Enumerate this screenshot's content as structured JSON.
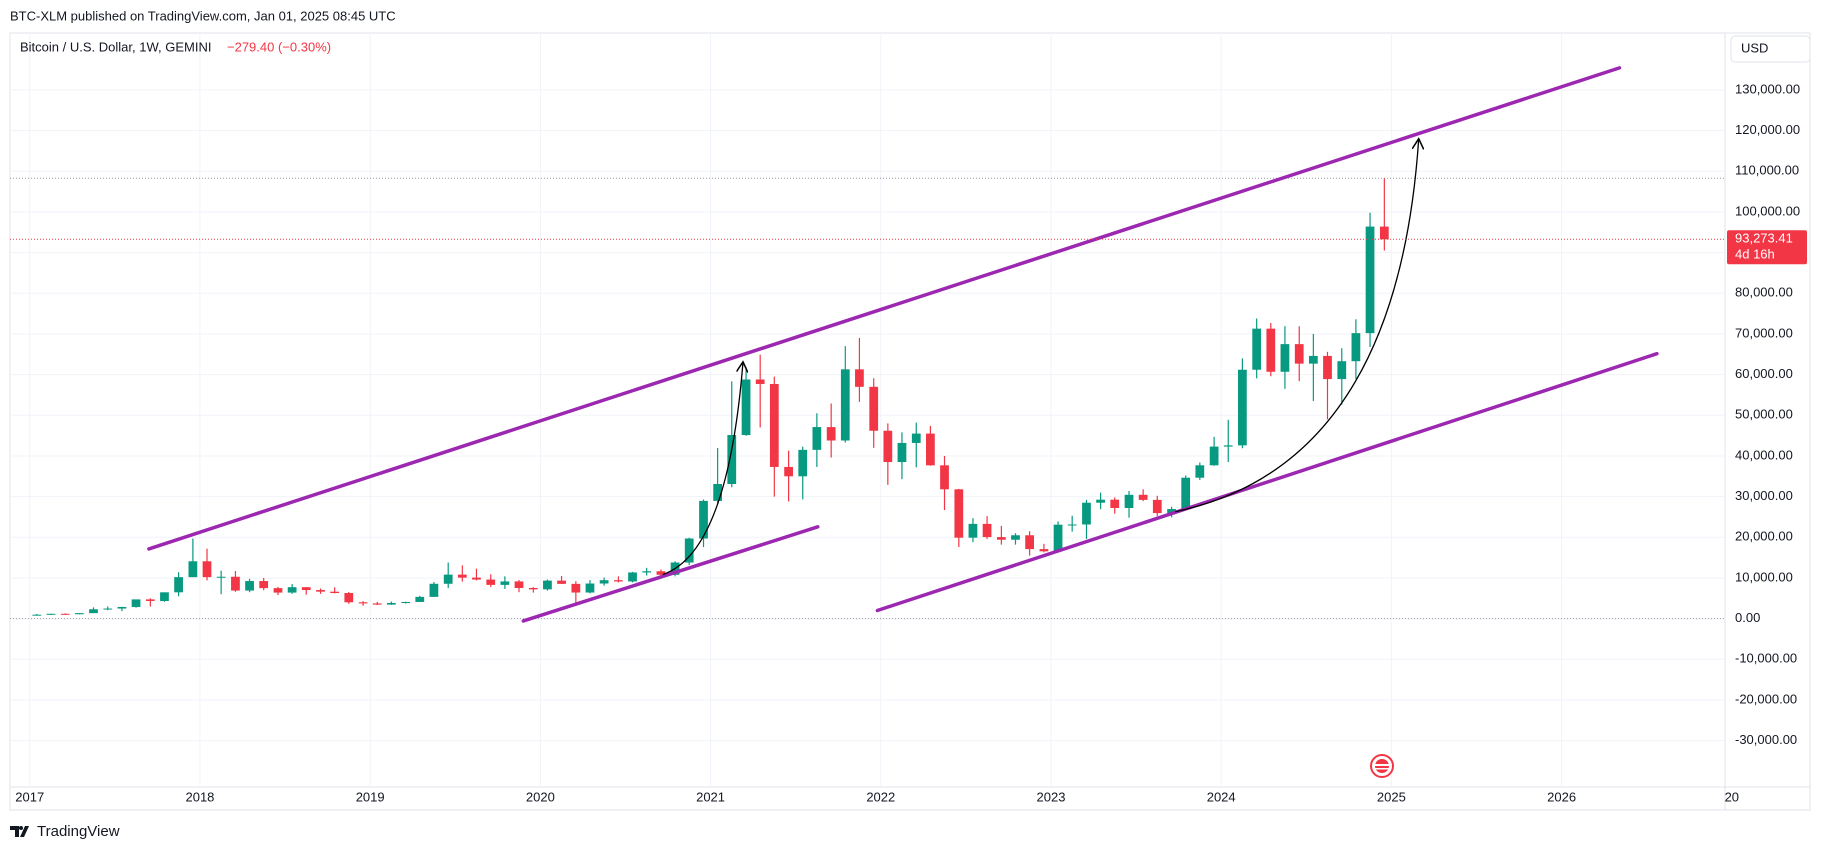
{
  "chart_data": {
    "type": "candlestick",
    "header": "BTC-XLM published on TradingView.com, Jan 01, 2025 08:45 UTC",
    "title": "Bitcoin / U.S. Dollar, 1W, GEMINI",
    "change_label": "−279.40 (−0.30%)",
    "currency": "USD",
    "footer": "TradingView",
    "up_color": "#089981",
    "down_color": "#f23645",
    "x": [
      2017,
      2017.083,
      2017.167,
      2017.25,
      2017.333,
      2017.417,
      2017.5,
      2017.583,
      2017.667,
      2017.75,
      2017.833,
      2017.917,
      2018,
      2018.083,
      2018.167,
      2018.25,
      2018.333,
      2018.417,
      2018.5,
      2018.583,
      2018.667,
      2018.75,
      2018.833,
      2018.917,
      2019,
      2019.083,
      2019.167,
      2019.25,
      2019.333,
      2019.417,
      2019.5,
      2019.583,
      2019.667,
      2019.75,
      2019.833,
      2019.917,
      2020,
      2020.083,
      2020.167,
      2020.25,
      2020.333,
      2020.417,
      2020.5,
      2020.583,
      2020.667,
      2020.75,
      2020.833,
      2020.917,
      2021,
      2021.083,
      2021.167,
      2021.25,
      2021.333,
      2021.417,
      2021.5,
      2021.583,
      2021.667,
      2021.75,
      2021.833,
      2021.917,
      2022,
      2022.083,
      2022.167,
      2022.25,
      2022.333,
      2022.417,
      2022.5,
      2022.583,
      2022.667,
      2022.75,
      2022.833,
      2022.917,
      2023,
      2023.083,
      2023.167,
      2023.25,
      2023.333,
      2023.417,
      2023.5,
      2023.583,
      2023.667,
      2023.75,
      2023.833,
      2023.917,
      2024,
      2024.083,
      2024.167,
      2024.25,
      2024.333,
      2024.417,
      2024.5,
      2024.583,
      2024.667,
      2024.75,
      2024.833,
      2024.917
    ],
    "open": [
      960,
      970,
      1190,
      1080,
      1350,
      2300,
      2480,
      2870,
      4730,
      4340,
      6470,
      10200,
      14100,
      10200,
      10300,
      6900,
      9240,
      7500,
      6400,
      7730,
      7030,
      6630,
      6300,
      4020,
      3740,
      3450,
      3850,
      4100,
      5350,
      8570,
      10820,
      10080,
      9600,
      8300,
      9150,
      7540,
      7200,
      9350,
      8550,
      6420,
      8630,
      9450,
      9140,
      11350,
      11650,
      10780,
      13800,
      19700,
      28950,
      33100,
      45150,
      58800,
      57700,
      37300,
      35000,
      41500,
      47100,
      43800,
      61300,
      57000,
      46200,
      38500,
      43200,
      45500,
      37700,
      31800,
      19900,
      23300,
      20050,
      19400,
      20500,
      17100,
      16550,
      23100,
      23150,
      28500,
      29250,
      27200,
      30450,
      29200,
      25950,
      26950,
      34650,
      37700,
      42300,
      42600,
      61200,
      71300,
      60700,
      67500,
      62700,
      64600,
      58900,
      63300,
      70200,
      96400
    ],
    "high": [
      1150,
      1200,
      1290,
      1350,
      2760,
      3000,
      2900,
      4700,
      5000,
      6470,
      11400,
      19700,
      17200,
      11800,
      11700,
      9800,
      10000,
      7800,
      8500,
      7750,
      7400,
      7700,
      6550,
      4300,
      4100,
      4200,
      4150,
      5600,
      9000,
      13800,
      13100,
      12300,
      10900,
      10400,
      9500,
      7750,
      9600,
      10500,
      9200,
      9480,
      10080,
      10400,
      11500,
      12480,
      12100,
      14100,
      19900,
      29300,
      41950,
      58350,
      61800,
      64900,
      59500,
      41300,
      42300,
      50500,
      52900,
      67000,
      69000,
      59100,
      48000,
      45800,
      48200,
      47400,
      40000,
      31900,
      24700,
      25200,
      22800,
      21000,
      21500,
      18400,
      23900,
      25300,
      29200,
      31000,
      29800,
      31400,
      31800,
      30200,
      27500,
      35200,
      38400,
      44700,
      48900,
      64000,
      73800,
      72700,
      71900,
      71900,
      70000,
      65600,
      66500,
      73600,
      99800,
      108300
    ],
    "low": [
      750,
      920,
      890,
      1060,
      1350,
      2100,
      1830,
      2700,
      2980,
      4130,
      5500,
      10200,
      9400,
      6000,
      6600,
      6500,
      7000,
      5800,
      6100,
      5900,
      6100,
      6200,
      3650,
      3150,
      3350,
      3380,
      3700,
      4080,
      5330,
      7500,
      9100,
      9400,
      7800,
      7300,
      6500,
      6400,
      6900,
      8500,
      3800,
      6200,
      8100,
      8900,
      8900,
      10600,
      9900,
      10400,
      13200,
      17600,
      28100,
      32300,
      44950,
      47000,
      30000,
      28800,
      29300,
      37300,
      39600,
      43300,
      53300,
      42000,
      32900,
      34300,
      37200,
      37600,
      26700,
      17600,
      18800,
      19600,
      18200,
      18200,
      15500,
      16300,
      16500,
      21400,
      19600,
      26900,
      25800,
      24800,
      28900,
      25200,
      24900,
      26600,
      34100,
      37600,
      38500,
      41900,
      59100,
      59600,
      56500,
      58400,
      53500,
      49000,
      52600,
      58900,
      66800,
      90500
    ],
    "close": [
      970,
      1190,
      1080,
      1350,
      2300,
      2480,
      2870,
      4730,
      4340,
      6470,
      10200,
      14100,
      10200,
      10300,
      6900,
      9240,
      7500,
      6400,
      7730,
      7030,
      6630,
      6300,
      4020,
      3740,
      3450,
      3850,
      4100,
      5350,
      8570,
      10820,
      10080,
      9600,
      8300,
      9150,
      7540,
      7200,
      9350,
      8550,
      6420,
      8630,
      9450,
      9140,
      11350,
      11650,
      10780,
      13800,
      19700,
      28950,
      33100,
      45150,
      58800,
      57700,
      37300,
      35000,
      41500,
      47100,
      43800,
      61300,
      57000,
      46200,
      38500,
      43200,
      45500,
      37700,
      31800,
      19900,
      23300,
      20050,
      19400,
      20500,
      17100,
      16550,
      23100,
      23150,
      28500,
      29250,
      27200,
      30450,
      29200,
      25950,
      26950,
      34650,
      37700,
      42300,
      42600,
      61200,
      71300,
      60700,
      67500,
      62700,
      64600,
      58900,
      63300,
      70200,
      96400,
      93273.41
    ],
    "last_price": 93273.41,
    "last_price_label": "93,273.41",
    "countdown": "4d 16h",
    "reference_lines": [
      108300,
      0
    ],
    "xlim": [
      2016.884,
      2026.96
    ],
    "xticks": [
      2017,
      2018,
      2019,
      2020,
      2021,
      2022,
      2023,
      2024,
      2025,
      2026,
      {
        "value": 2027,
        "label": "20"
      }
    ],
    "ylim": [
      -41400,
      144000
    ],
    "yticks": [
      {
        "value": -30000,
        "label": "-30,000.00"
      },
      {
        "value": -20000,
        "label": "-20,000.00"
      },
      {
        "value": -10000,
        "label": "-10,000.00"
      },
      {
        "value": 0,
        "label": "0.00"
      },
      {
        "value": 10000,
        "label": "10,000.00"
      },
      {
        "value": 20000,
        "label": "20,000.00"
      },
      {
        "value": 30000,
        "label": "30,000.00"
      },
      {
        "value": 40000,
        "label": "40,000.00"
      },
      {
        "value": 50000,
        "label": "50,000.00"
      },
      {
        "value": 60000,
        "label": "60,000.00"
      },
      {
        "value": 70000,
        "label": "70,000.00"
      },
      {
        "value": 80000,
        "label": "80,000.00"
      },
      {
        "value": 90000,
        "label": "90,000.00"
      },
      {
        "value": 100000,
        "label": "100,000.00"
      },
      {
        "value": 110000,
        "label": "110,000.00"
      },
      {
        "value": 120000,
        "label": "120,000.00"
      },
      {
        "value": 130000,
        "label": "130,000.00"
      }
    ],
    "grid": true,
    "drawings": [
      {
        "kind": "line",
        "color": "#9c27b0",
        "points": [
          [
            2017.7,
            17143
          ],
          [
            2026.34,
            135430
          ]
        ]
      },
      {
        "kind": "line",
        "color": "#9c27b0",
        "points": [
          [
            2019.9,
            -571
          ],
          [
            2021.63,
            22571
          ]
        ]
      },
      {
        "kind": "line",
        "color": "#9c27b0",
        "points": [
          [
            2021.98,
            2000
          ],
          [
            2026.56,
            65143
          ]
        ]
      },
      {
        "kind": "curve",
        "color": "#000000",
        "points": [
          [
            2020.72,
            10857
          ],
          [
            2021.1,
            16286
          ],
          [
            2021.19,
            62857
          ]
        ]
      },
      {
        "kind": "curve",
        "color": "#000000",
        "points": [
          [
            2023.73,
            26286
          ],
          [
            2025.03,
            37714
          ],
          [
            2025.16,
            117714
          ]
        ]
      }
    ]
  }
}
